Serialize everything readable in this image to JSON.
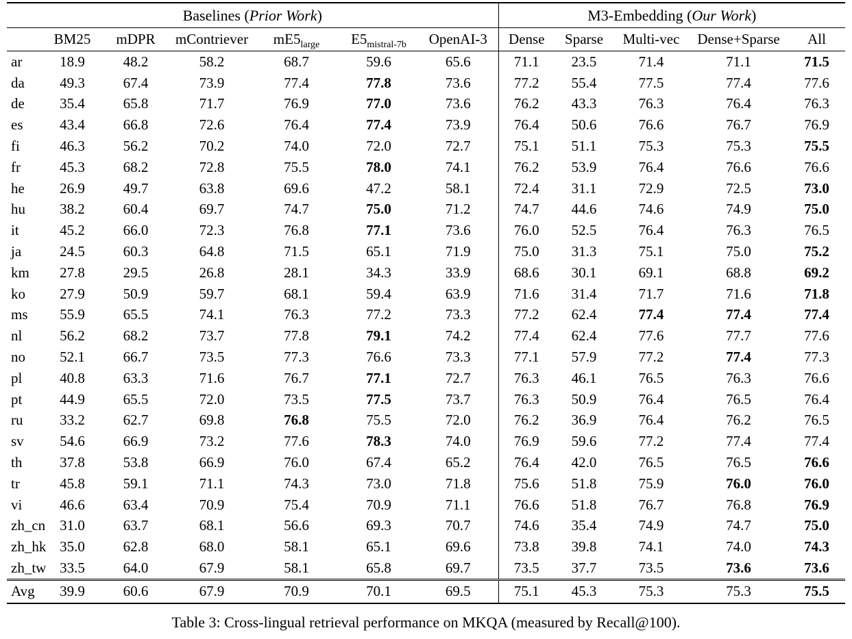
{
  "colors": {
    "background": "#ffffff",
    "text": "#000000",
    "rule": "#000000"
  },
  "caption": "Table 3: Cross-lingual retrieval performance on MKQA (measured by Recall@100).",
  "table": {
    "group_headers": [
      {
        "text": "Baselines (",
        "italic": "Prior Work",
        "close": ")"
      },
      {
        "text": "M3-Embedding (",
        "italic": "Our Work",
        "close": ")"
      }
    ],
    "columns": [
      {
        "id": "lang",
        "label": ""
      },
      {
        "id": "bm25",
        "label": "BM25"
      },
      {
        "id": "mdpr",
        "label": "mDPR"
      },
      {
        "id": "mcontriever",
        "label": "mContriever"
      },
      {
        "id": "me5-large",
        "label": "mE5",
        "sub": "large"
      },
      {
        "id": "e5-mistral-7b",
        "label": "E5",
        "sub": "mistral-7b"
      },
      {
        "id": "openai-3",
        "label": "OpenAI-3"
      },
      {
        "id": "dense",
        "label": "Dense"
      },
      {
        "id": "sparse",
        "label": "Sparse"
      },
      {
        "id": "multi-vec",
        "label": "Multi-vec"
      },
      {
        "id": "dense-sparse",
        "label": "Dense+Sparse"
      },
      {
        "id": "all",
        "label": "All"
      }
    ],
    "rows": [
      {
        "lang": "ar",
        "values": [
          "18.9",
          "48.2",
          "58.2",
          "68.7",
          "59.6",
          "65.6",
          "71.1",
          "23.5",
          "71.4",
          "71.1",
          "71.5"
        ],
        "bold": [
          10
        ]
      },
      {
        "lang": "da",
        "values": [
          "49.3",
          "67.4",
          "73.9",
          "77.4",
          "77.8",
          "73.6",
          "77.2",
          "55.4",
          "77.5",
          "77.4",
          "77.6"
        ],
        "bold": [
          4
        ]
      },
      {
        "lang": "de",
        "values": [
          "35.4",
          "65.8",
          "71.7",
          "76.9",
          "77.0",
          "73.6",
          "76.2",
          "43.3",
          "76.3",
          "76.4",
          "76.3"
        ],
        "bold": [
          4
        ]
      },
      {
        "lang": "es",
        "values": [
          "43.4",
          "66.8",
          "72.6",
          "76.4",
          "77.4",
          "73.9",
          "76.4",
          "50.6",
          "76.6",
          "76.7",
          "76.9"
        ],
        "bold": [
          4
        ]
      },
      {
        "lang": "fi",
        "values": [
          "46.3",
          "56.2",
          "70.2",
          "74.0",
          "72.0",
          "72.7",
          "75.1",
          "51.1",
          "75.3",
          "75.3",
          "75.5"
        ],
        "bold": [
          10
        ]
      },
      {
        "lang": "fr",
        "values": [
          "45.3",
          "68.2",
          "72.8",
          "75.5",
          "78.0",
          "74.1",
          "76.2",
          "53.9",
          "76.4",
          "76.6",
          "76.6"
        ],
        "bold": [
          4
        ]
      },
      {
        "lang": "he",
        "values": [
          "26.9",
          "49.7",
          "63.8",
          "69.6",
          "47.2",
          "58.1",
          "72.4",
          "31.1",
          "72.9",
          "72.5",
          "73.0"
        ],
        "bold": [
          10
        ]
      },
      {
        "lang": "hu",
        "values": [
          "38.2",
          "60.4",
          "69.7",
          "74.7",
          "75.0",
          "71.2",
          "74.7",
          "44.6",
          "74.6",
          "74.9",
          "75.0"
        ],
        "bold": [
          4,
          10
        ]
      },
      {
        "lang": "it",
        "values": [
          "45.2",
          "66.0",
          "72.3",
          "76.8",
          "77.1",
          "73.6",
          "76.0",
          "52.5",
          "76.4",
          "76.3",
          "76.5"
        ],
        "bold": [
          4
        ]
      },
      {
        "lang": "ja",
        "values": [
          "24.5",
          "60.3",
          "64.8",
          "71.5",
          "65.1",
          "71.9",
          "75.0",
          "31.3",
          "75.1",
          "75.0",
          "75.2"
        ],
        "bold": [
          10
        ]
      },
      {
        "lang": "km",
        "values": [
          "27.8",
          "29.5",
          "26.8",
          "28.1",
          "34.3",
          "33.9",
          "68.6",
          "30.1",
          "69.1",
          "68.8",
          "69.2"
        ],
        "bold": [
          10
        ]
      },
      {
        "lang": "ko",
        "values": [
          "27.9",
          "50.9",
          "59.7",
          "68.1",
          "59.4",
          "63.9",
          "71.6",
          "31.4",
          "71.7",
          "71.6",
          "71.8"
        ],
        "bold": [
          10
        ]
      },
      {
        "lang": "ms",
        "values": [
          "55.9",
          "65.5",
          "74.1",
          "76.3",
          "77.2",
          "73.3",
          "77.2",
          "62.4",
          "77.4",
          "77.4",
          "77.4"
        ],
        "bold": [
          8,
          9,
          10
        ]
      },
      {
        "lang": "nl",
        "values": [
          "56.2",
          "68.2",
          "73.7",
          "77.8",
          "79.1",
          "74.2",
          "77.4",
          "62.4",
          "77.6",
          "77.7",
          "77.6"
        ],
        "bold": [
          4
        ]
      },
      {
        "lang": "no",
        "values": [
          "52.1",
          "66.7",
          "73.5",
          "77.3",
          "76.6",
          "73.3",
          "77.1",
          "57.9",
          "77.2",
          "77.4",
          "77.3"
        ],
        "bold": [
          9
        ]
      },
      {
        "lang": "pl",
        "values": [
          "40.8",
          "63.3",
          "71.6",
          "76.7",
          "77.1",
          "72.7",
          "76.3",
          "46.1",
          "76.5",
          "76.3",
          "76.6"
        ],
        "bold": [
          4
        ]
      },
      {
        "lang": "pt",
        "values": [
          "44.9",
          "65.5",
          "72.0",
          "73.5",
          "77.5",
          "73.7",
          "76.3",
          "50.9",
          "76.4",
          "76.5",
          "76.4"
        ],
        "bold": [
          4
        ]
      },
      {
        "lang": "ru",
        "values": [
          "33.2",
          "62.7",
          "69.8",
          "76.8",
          "75.5",
          "72.0",
          "76.2",
          "36.9",
          "76.4",
          "76.2",
          "76.5"
        ],
        "bold": [
          3
        ]
      },
      {
        "lang": "sv",
        "values": [
          "54.6",
          "66.9",
          "73.2",
          "77.6",
          "78.3",
          "74.0",
          "76.9",
          "59.6",
          "77.2",
          "77.4",
          "77.4"
        ],
        "bold": [
          4
        ]
      },
      {
        "lang": "th",
        "values": [
          "37.8",
          "53.8",
          "66.9",
          "76.0",
          "67.4",
          "65.2",
          "76.4",
          "42.0",
          "76.5",
          "76.5",
          "76.6"
        ],
        "bold": [
          10
        ]
      },
      {
        "lang": "tr",
        "values": [
          "45.8",
          "59.1",
          "71.1",
          "74.3",
          "73.0",
          "71.8",
          "75.6",
          "51.8",
          "75.9",
          "76.0",
          "76.0"
        ],
        "bold": [
          9,
          10
        ]
      },
      {
        "lang": "vi",
        "values": [
          "46.6",
          "63.4",
          "70.9",
          "75.4",
          "70.9",
          "71.1",
          "76.6",
          "51.8",
          "76.7",
          "76.8",
          "76.9"
        ],
        "bold": [
          10
        ]
      },
      {
        "lang": "zh_cn",
        "values": [
          "31.0",
          "63.7",
          "68.1",
          "56.6",
          "69.3",
          "70.7",
          "74.6",
          "35.4",
          "74.9",
          "74.7",
          "75.0"
        ],
        "bold": [
          10
        ]
      },
      {
        "lang": "zh_hk",
        "values": [
          "35.0",
          "62.8",
          "68.0",
          "58.1",
          "65.1",
          "69.6",
          "73.8",
          "39.8",
          "74.1",
          "74.0",
          "74.3"
        ],
        "bold": [
          10
        ]
      },
      {
        "lang": "zh_tw",
        "values": [
          "33.5",
          "64.0",
          "67.9",
          "58.1",
          "65.8",
          "69.7",
          "73.5",
          "37.7",
          "73.5",
          "73.6",
          "73.6"
        ],
        "bold": [
          9,
          10
        ]
      },
      {
        "lang": "Avg",
        "values": [
          "39.9",
          "60.6",
          "67.9",
          "70.9",
          "70.1",
          "69.5",
          "75.1",
          "45.3",
          "75.3",
          "75.3",
          "75.5"
        ],
        "bold": [
          10
        ],
        "is_avg": true
      }
    ]
  }
}
